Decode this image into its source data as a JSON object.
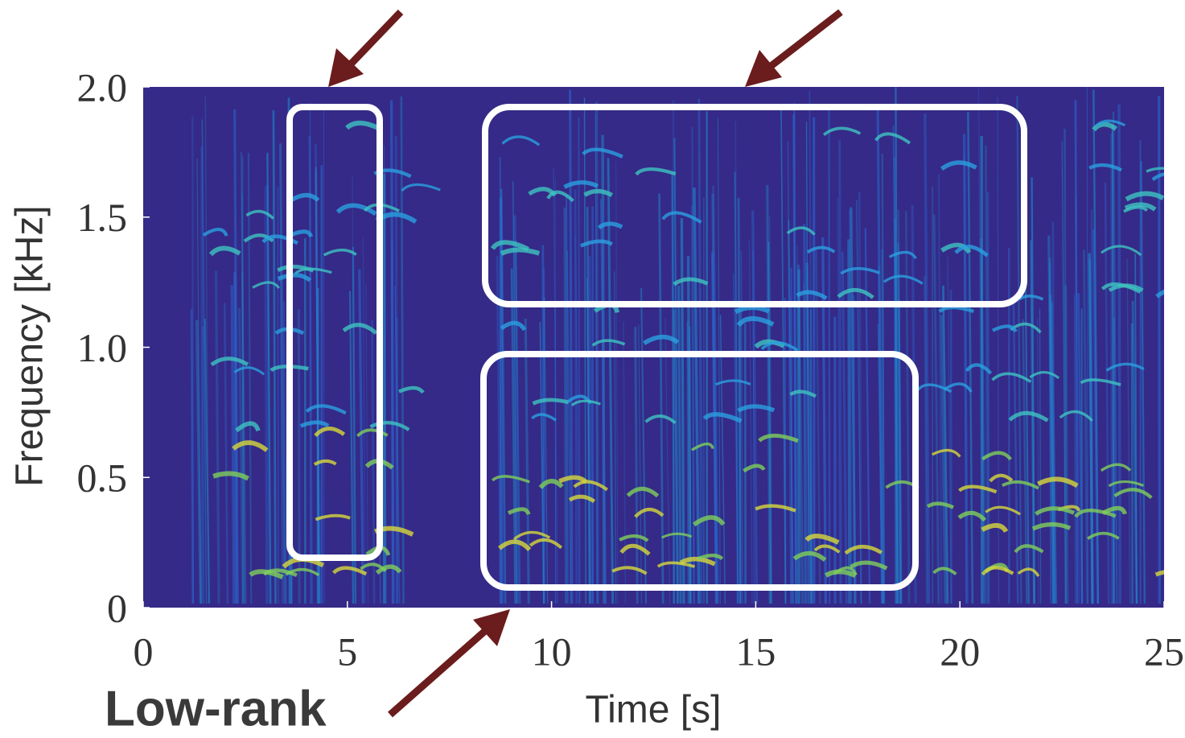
{
  "chart_data": {
    "type": "heatmap",
    "x_label": "Time [s]",
    "y_label": "Frequency [kHz]",
    "xlim": [
      0,
      25
    ],
    "xticks": [
      0,
      5,
      10,
      15,
      20,
      25
    ],
    "ylim": [
      0,
      2
    ],
    "yticks": [
      {
        "value": 0,
        "label": "0"
      },
      {
        "value": 0.5,
        "label": "0.5"
      },
      {
        "value": 1,
        "label": "1.0"
      },
      {
        "value": 1.5,
        "label": "1.5"
      },
      {
        "value": 2,
        "label": "2.0"
      }
    ],
    "color": "#352a87",
    "annotations": [
      "Low-rank"
    ]
  }
}
